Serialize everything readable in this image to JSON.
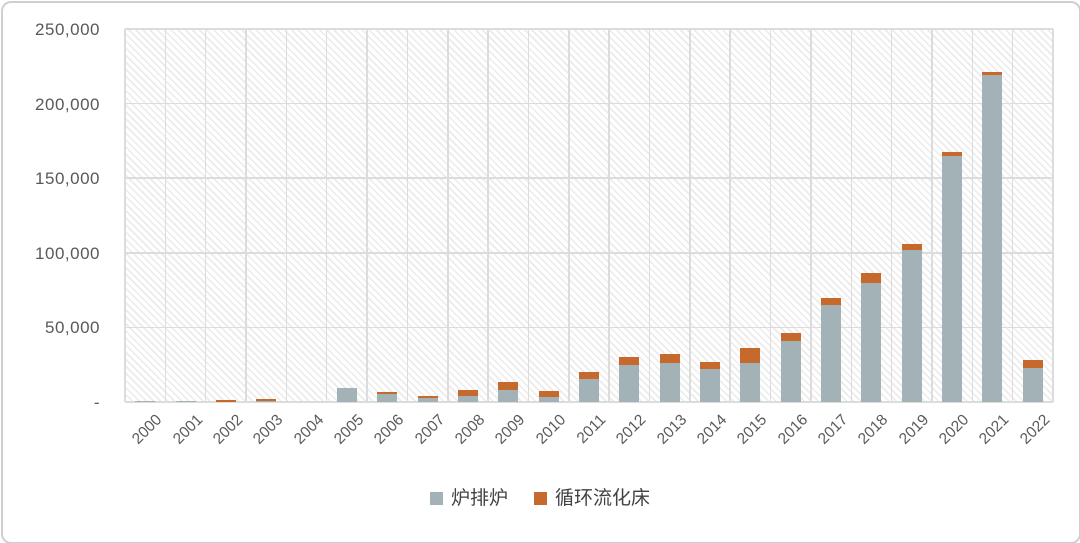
{
  "chart_data": {
    "type": "bar",
    "stacked": true,
    "title": "",
    "xlabel": "",
    "ylabel": "",
    "categories": [
      "2000",
      "2001",
      "2002",
      "2003",
      "2004",
      "2005",
      "2006",
      "2007",
      "2008",
      "2009",
      "2010",
      "2011",
      "2012",
      "2013",
      "2014",
      "2015",
      "2016",
      "2017",
      "2018",
      "2019",
      "2020",
      "2021",
      "2022"
    ],
    "series": [
      {
        "name": "炉排炉",
        "color": "#A2B2B6",
        "values": [
          400,
          1000,
          0,
          1000,
          0,
          9500,
          5200,
          2900,
          4000,
          8000,
          3500,
          15300,
          24800,
          26300,
          21800,
          26000,
          41000,
          65000,
          80000,
          102000,
          164800,
          219000,
          23000
        ]
      },
      {
        "name": "循环流化床",
        "color": "#C6692D",
        "values": [
          0,
          0,
          1500,
          800,
          0,
          0,
          1300,
          1400,
          4300,
          5300,
          3700,
          4500,
          5200,
          5600,
          5000,
          10000,
          5500,
          4500,
          6500,
          4000,
          3000,
          2500,
          5300
        ]
      }
    ],
    "y_axis": {
      "min": 0,
      "max": 250000,
      "step": 50000,
      "tick_labels": [
        "-",
        "50,000",
        "100,000",
        "150,000",
        "200,000",
        "250,000"
      ]
    },
    "x_label_rotation": -45,
    "legend_position": "bottom",
    "grid": {
      "horizontal": true,
      "vertical": true,
      "hatch_background": true
    }
  },
  "colors": {
    "background": "#ffffff",
    "frame_border": "#cfcfcf",
    "gridline": "#dcdcdc",
    "tick_text": "#595959",
    "legend_text": "#424242"
  }
}
